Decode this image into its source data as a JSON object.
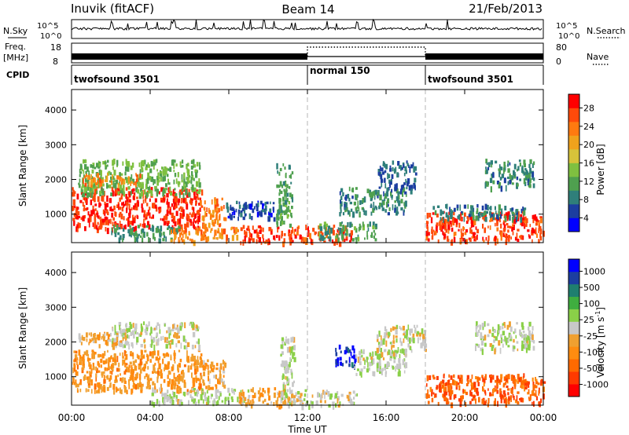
{
  "header": {
    "station": "Inuvik (fitACF)",
    "beam": "Beam 14",
    "date": "21/Feb/2013"
  },
  "top_panels": {
    "nsky_label": "N.Sky",
    "nsky_ticks_left": [
      "10^5",
      "10^0"
    ],
    "nsky_ticks_right": [
      "10^5",
      "10^0"
    ],
    "nsearch_label": "N.Search",
    "freq_label": "Freq.",
    "freq_unit": "[MHz]",
    "freq_ticks": [
      "18",
      "8"
    ],
    "nave_ticks": [
      "80",
      "0"
    ],
    "nave_label": "Nave",
    "cpid_label": "CPID",
    "cpid_segments": [
      {
        "name": "twofsound 3501",
        "start_hour": 0,
        "end_hour": 12
      },
      {
        "name": "normal 150",
        "start_hour": 12,
        "end_hour": 18
      },
      {
        "name": "twofsound 3501",
        "start_hour": 18,
        "end_hour": 24
      }
    ]
  },
  "chart_data": [
    {
      "type": "heatmap",
      "title": "",
      "xlabel": "Time UT",
      "ylabel": "Slant Range [km]",
      "xlim": [
        0,
        24
      ],
      "ylim": [
        180,
        4590
      ],
      "x_ticks": [
        "00:00",
        "04:00",
        "08:00",
        "12:00",
        "16:00",
        "20:00",
        "00:00"
      ],
      "y_ticks": [
        1000,
        2000,
        3000,
        4000
      ],
      "colorbar": {
        "label": "Power [dB]",
        "ticks": [
          "28",
          "24",
          "20",
          "16",
          "12",
          "8",
          "4"
        ],
        "range": [
          0,
          30
        ],
        "colors": [
          "#0000ff",
          "#1c3ea0",
          "#2f7f7a",
          "#4fa04f",
          "#7fc040",
          "#d7c33a",
          "#f0a21c",
          "#ff7a10",
          "#ff4a0a",
          "#ff0000"
        ]
      },
      "clusters": [
        {
          "t0": 0.0,
          "t1": 6.6,
          "r0": 600,
          "r1": 1800,
          "value": 27
        },
        {
          "t0": 6.5,
          "t1": 7.8,
          "r0": 700,
          "r1": 1500,
          "value": 22
        },
        {
          "t0": 0.3,
          "t1": 6.5,
          "r0": 1600,
          "r1": 2600,
          "value": 12
        },
        {
          "t0": 0.5,
          "t1": 3.5,
          "r0": 1900,
          "r1": 2200,
          "value": 22
        },
        {
          "t0": 2.0,
          "t1": 5.5,
          "r0": 300,
          "r1": 700,
          "value": 9
        },
        {
          "t0": 5.0,
          "t1": 8.5,
          "r0": 250,
          "r1": 650,
          "value": 22
        },
        {
          "t0": 7.8,
          "t1": 10.5,
          "r0": 900,
          "r1": 1400,
          "value": 5
        },
        {
          "t0": 8.5,
          "t1": 10.8,
          "r0": 200,
          "r1": 700,
          "value": 26
        },
        {
          "t0": 10.4,
          "t1": 11.2,
          "r0": 700,
          "r1": 2500,
          "value": 10
        },
        {
          "t0": 11.0,
          "t1": 14.2,
          "r0": 200,
          "r1": 700,
          "value": 26
        },
        {
          "t0": 12.5,
          "t1": 15.5,
          "r0": 300,
          "r1": 800,
          "value": 10
        },
        {
          "t0": 13.6,
          "t1": 17.0,
          "r0": 1050,
          "r1": 1800,
          "value": 8
        },
        {
          "t0": 15.5,
          "t1": 17.5,
          "r0": 1700,
          "r1": 2050,
          "value": 6
        },
        {
          "t0": 15.5,
          "t1": 17.5,
          "r0": 2150,
          "r1": 2550,
          "value": 6
        },
        {
          "t0": 18.0,
          "t1": 24.0,
          "r0": 250,
          "r1": 1100,
          "value": 26
        },
        {
          "t0": 18.3,
          "t1": 23.0,
          "r0": 900,
          "r1": 1300,
          "value": 8
        },
        {
          "t0": 21.0,
          "t1": 23.5,
          "r0": 1800,
          "r1": 2600,
          "value": 8
        }
      ]
    },
    {
      "type": "heatmap",
      "title": "",
      "xlabel": "Time UT",
      "ylabel": "Slant Range [km]",
      "xlim": [
        0,
        24
      ],
      "ylim": [
        180,
        4590
      ],
      "x_ticks": [
        "00:00",
        "04:00",
        "08:00",
        "12:00",
        "16:00",
        "20:00",
        "00:00"
      ],
      "y_ticks": [
        1000,
        2000,
        3000,
        4000
      ],
      "colorbar": {
        "label": "Velocity [m s^-1]",
        "ticks": [
          "1000",
          "500",
          "100",
          "25",
          "-25",
          "-100",
          "-500",
          "-1000"
        ],
        "range": [
          -1000,
          1000
        ],
        "colors": [
          "#ff0000",
          "#ff3a00",
          "#ff6a00",
          "#ff8c10",
          "#f0a030",
          "#c8c8c8",
          "#8ad048",
          "#3fae3f",
          "#1f7f6f",
          "#1c3ea0",
          "#0000ff"
        ]
      },
      "clusters": [
        {
          "t0": 0.0,
          "t1": 6.6,
          "r0": 600,
          "r1": 1800,
          "value": -300
        },
        {
          "t0": 6.5,
          "t1": 7.8,
          "r0": 700,
          "r1": 1500,
          "value": -200
        },
        {
          "t0": 2.0,
          "t1": 6.5,
          "r0": 1900,
          "r1": 2600,
          "value": 0
        },
        {
          "t0": 0.3,
          "t1": 2.5,
          "r0": 1900,
          "r1": 2300,
          "value": -150
        },
        {
          "t0": 4.0,
          "t1": 9.0,
          "r0": 250,
          "r1": 700,
          "value": 60
        },
        {
          "t0": 8.5,
          "t1": 11.0,
          "r0": 200,
          "r1": 700,
          "value": -250
        },
        {
          "t0": 10.6,
          "t1": 11.3,
          "r0": 250,
          "r1": 2200,
          "value": 80
        },
        {
          "t0": 11.0,
          "t1": 14.5,
          "r0": 200,
          "r1": 650,
          "value": 0
        },
        {
          "t0": 13.4,
          "t1": 14.4,
          "r0": 1300,
          "r1": 1950,
          "value": 800
        },
        {
          "t0": 14.3,
          "t1": 17.0,
          "r0": 1100,
          "r1": 1800,
          "value": 80
        },
        {
          "t0": 15.5,
          "t1": 18.0,
          "r0": 1700,
          "r1": 2500,
          "value": 0
        },
        {
          "t0": 18.0,
          "t1": 24.0,
          "r0": 250,
          "r1": 1100,
          "value": -600
        },
        {
          "t0": 20.5,
          "t1": 23.5,
          "r0": 1800,
          "r1": 2600,
          "value": 60
        }
      ]
    }
  ],
  "colors": {
    "background": "#ffffff",
    "frame": "#000000",
    "dashed_divider": "#b4b4b4"
  }
}
